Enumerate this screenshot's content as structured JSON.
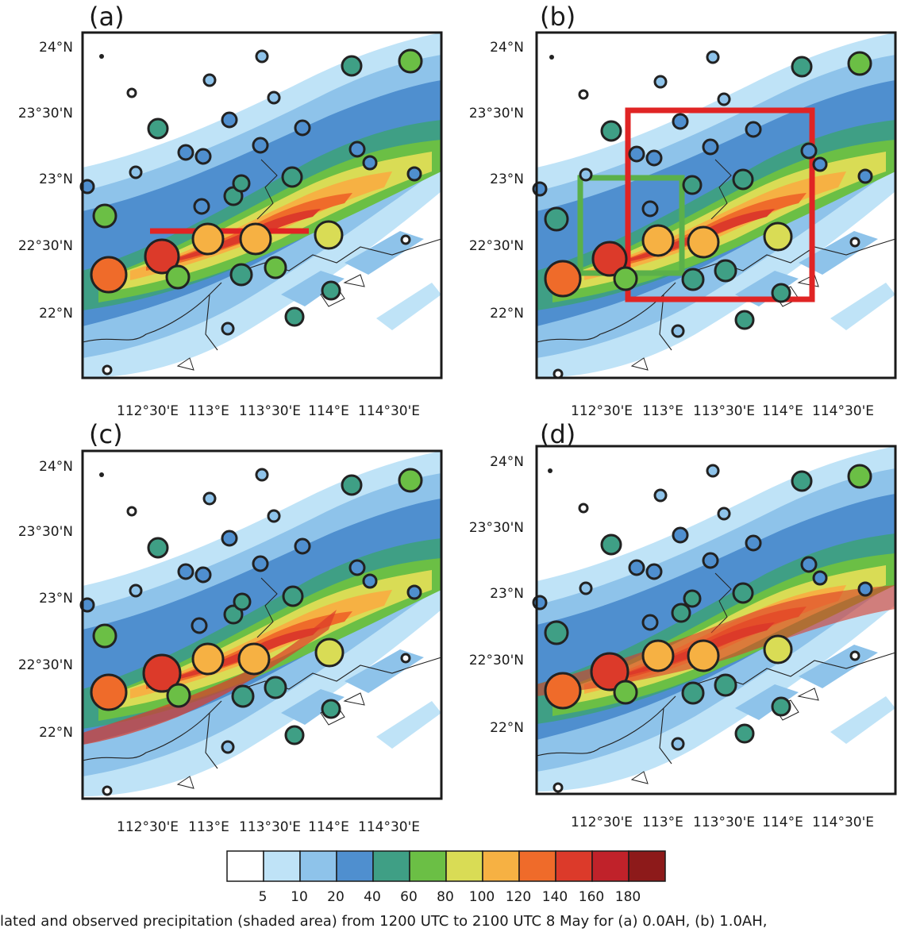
{
  "panels": [
    {
      "label": "(a)",
      "xticks": [
        "112°30'E",
        "113°E",
        "113°30'E",
        "114°E",
        "114°30'E"
      ],
      "yticks": [
        "24°N",
        "23°30'N",
        "23°N",
        "22°30'N",
        "22°N"
      ]
    },
    {
      "label": "(b)",
      "xticks": [
        "112°30'E",
        "113°E",
        "113°30'E",
        "114°E",
        "114°30'E"
      ],
      "yticks": [
        "24°N",
        "23°30'N",
        "23°N",
        "22°30'N",
        "22°N"
      ]
    },
    {
      "label": "(c)",
      "xticks": [
        "112°30'E",
        "113°E",
        "113°30'E",
        "114°E",
        "114°30'E"
      ],
      "yticks": [
        "24°N",
        "23°30'N",
        "23°N",
        "22°30'N",
        "22°N"
      ]
    },
    {
      "label": "(d)",
      "xticks": [
        "112°30'E",
        "113°E",
        "113°30'E",
        "114°E",
        "114°30'E"
      ],
      "yticks": [
        "24°N",
        "23°30'N",
        "23°N",
        "22°30'N",
        "22°N"
      ]
    }
  ],
  "colorbar": {
    "labels": [
      "5",
      "10",
      "20",
      "40",
      "60",
      "80",
      "100",
      "120",
      "140",
      "160",
      "180"
    ],
    "colors": [
      "#ffffff",
      "#bfe3f7",
      "#8ec3ea",
      "#4f8fcf",
      "#3f9f85",
      "#6bbf45",
      "#d9dc55",
      "#f6b143",
      "#ef6b2a",
      "#dc3a2a",
      "#c0222a",
      "#8d1a1a"
    ]
  },
  "caption": "lated and observed precipitation (shaded area) from 1200 UTC to 2100 UTC 8 May for (a) 0.0AH, (b) 1.0AH,"
}
